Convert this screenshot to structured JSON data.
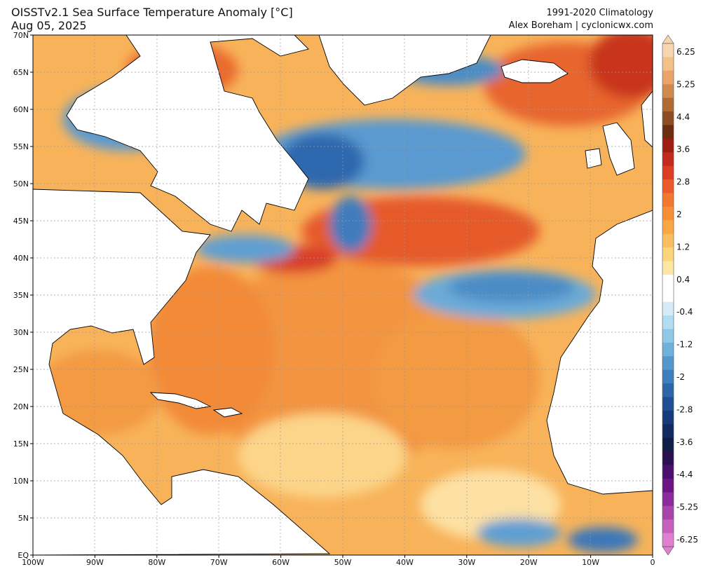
{
  "title": "OISSTv2.1 Sea Surface Temperature Anomaly [°C]",
  "date": "Aug 05, 2025",
  "climatology": "1991-2020 Climatology",
  "credit": "Alex Boreham | cyclonicwx.com",
  "lat_labels": [
    "70N",
    "65N",
    "60N",
    "55N",
    "50N",
    "45N",
    "40N",
    "35N",
    "30N",
    "25N",
    "20N",
    "15N",
    "10N",
    "5N",
    "EQ"
  ],
  "lon_labels": [
    "100W",
    "90W",
    "80W",
    "70W",
    "60W",
    "50W",
    "40W",
    "30W",
    "20W",
    "10W",
    "0"
  ],
  "colorbar": {
    "labels": [
      "6.25",
      "5.25",
      "4.4",
      "3.6",
      "2.8",
      "2",
      "1.2",
      "0.4",
      "-0.4",
      "-1.2",
      "-2",
      "-2.8",
      "-3.6",
      "-4.4",
      "-5.25",
      "-6.25"
    ],
    "colors": [
      "#f7d5b0",
      "#f3c089",
      "#eaa36a",
      "#d08a4d",
      "#b06a34",
      "#8c4d22",
      "#6b2e10",
      "#9d1d12",
      "#c12a1c",
      "#dc3c24",
      "#ec5a2c",
      "#f2772f",
      "#f59134",
      "#f8a744",
      "#f9bf5f",
      "#fbd57a",
      "#fde7a3",
      "#ffffff",
      "#ffffff",
      "#d5ecf7",
      "#b2ddf1",
      "#8ec8e8",
      "#6fb0dc",
      "#5497cc",
      "#3d7fbc",
      "#2b66a8",
      "#1e4f92",
      "#163b7a",
      "#112a60",
      "#101d48",
      "#2a1050",
      "#4b0f6e",
      "#6b1486",
      "#8b2a9a",
      "#a944ab",
      "#c65fbd",
      "#de7fd0"
    ]
  }
}
